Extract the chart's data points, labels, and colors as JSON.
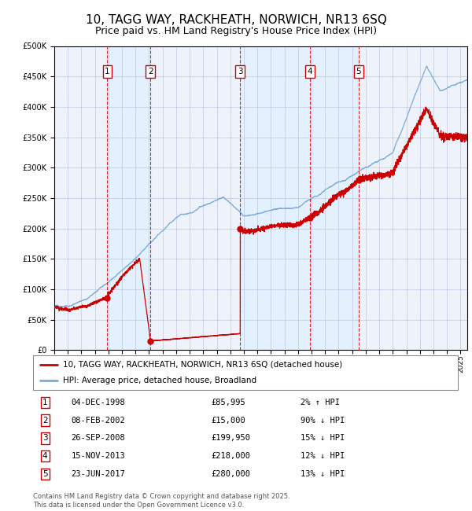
{
  "title": "10, TAGG WAY, RACKHEATH, NORWICH, NR13 6SQ",
  "subtitle": "Price paid vs. HM Land Registry's House Price Index (HPI)",
  "title_fontsize": 11,
  "subtitle_fontsize": 9,
  "sale_dates_num": [
    1998.92,
    2002.1,
    2008.73,
    2013.87,
    2017.47
  ],
  "sale_prices": [
    85995,
    15000,
    199950,
    218000,
    280000
  ],
  "sale_labels": [
    "1",
    "2",
    "3",
    "4",
    "5"
  ],
  "red_line_color": "#cc0000",
  "blue_line_color": "#7aabdb",
  "background_shading_color": "#ddeeff",
  "dashed_line_color": "#cc0000",
  "grid_color": "#bbbbdd",
  "ylim": [
    0,
    500000
  ],
  "yticks": [
    0,
    50000,
    100000,
    150000,
    200000,
    250000,
    300000,
    350000,
    400000,
    450000,
    500000
  ],
  "xlim": [
    1995,
    2025.5
  ],
  "xtick_years": [
    1995,
    1996,
    1997,
    1998,
    1999,
    2000,
    2001,
    2002,
    2003,
    2004,
    2005,
    2006,
    2007,
    2008,
    2009,
    2010,
    2011,
    2012,
    2013,
    2014,
    2015,
    2016,
    2017,
    2018,
    2019,
    2020,
    2021,
    2022,
    2023,
    2024,
    2025
  ],
  "legend_label_red": "10, TAGG WAY, RACKHEATH, NORWICH, NR13 6SQ (detached house)",
  "legend_label_blue": "HPI: Average price, detached house, Broadland",
  "table_rows": [
    [
      "1",
      "04-DEC-1998",
      "£85,995",
      "2% ↑ HPI"
    ],
    [
      "2",
      "08-FEB-2002",
      "£15,000",
      "90% ↓ HPI"
    ],
    [
      "3",
      "26-SEP-2008",
      "£199,950",
      "15% ↓ HPI"
    ],
    [
      "4",
      "15-NOV-2013",
      "£218,000",
      "12% ↓ HPI"
    ],
    [
      "5",
      "23-JUN-2017",
      "£280,000",
      "13% ↓ HPI"
    ]
  ],
  "footnote": "Contains HM Land Registry data © Crown copyright and database right 2025.\nThis data is licensed under the Open Government Licence v3.0.",
  "chart_bg": "#eef3fb"
}
